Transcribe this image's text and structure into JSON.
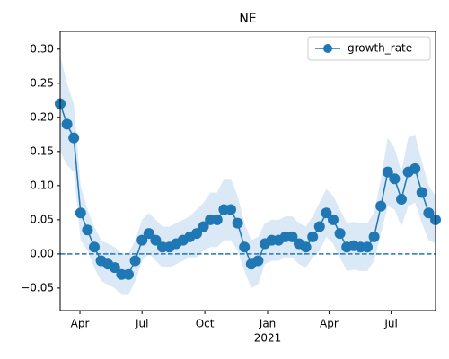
{
  "chart_data": {
    "type": "line",
    "title": "NE",
    "x": [
      0,
      10,
      20,
      30,
      40,
      50,
      60,
      70,
      80,
      90,
      100,
      110,
      120,
      130,
      140,
      150,
      160,
      170,
      180,
      190,
      200,
      210,
      220,
      230,
      240,
      250,
      260,
      270,
      280,
      290,
      300,
      310,
      320,
      330,
      340,
      350,
      360,
      370,
      380,
      390,
      400,
      410,
      420,
      430,
      440,
      450,
      460,
      470,
      480,
      490,
      500,
      510,
      520,
      530,
      540,
      550
    ],
    "series": [
      {
        "name": "growth_rate",
        "color": "#1f77b4",
        "band_color": "#dbe8f5",
        "values": [
          0.22,
          0.19,
          0.17,
          0.06,
          0.035,
          0.01,
          -0.01,
          -0.015,
          -0.02,
          -0.03,
          -0.03,
          -0.01,
          0.02,
          0.03,
          0.02,
          0.01,
          0.01,
          0.015,
          0.02,
          0.025,
          0.03,
          0.04,
          0.05,
          0.05,
          0.065,
          0.065,
          0.045,
          0.01,
          -0.015,
          -0.01,
          0.015,
          0.02,
          0.02,
          0.025,
          0.025,
          0.015,
          0.01,
          0.025,
          0.04,
          0.06,
          0.05,
          0.03,
          0.01,
          0.012,
          0.01,
          0.01,
          0.025,
          0.07,
          0.12,
          0.11,
          0.08,
          0.12,
          0.125,
          0.09,
          0.06,
          0.05
        ],
        "upper": [
          0.29,
          0.25,
          0.22,
          0.1,
          0.065,
          0.04,
          0.02,
          0.015,
          0.01,
          0.0,
          0.0,
          0.02,
          0.05,
          0.06,
          0.05,
          0.04,
          0.04,
          0.045,
          0.05,
          0.055,
          0.065,
          0.075,
          0.09,
          0.09,
          0.11,
          0.11,
          0.085,
          0.045,
          0.02,
          0.025,
          0.045,
          0.05,
          0.05,
          0.055,
          0.055,
          0.045,
          0.04,
          0.055,
          0.075,
          0.095,
          0.085,
          0.065,
          0.045,
          0.047,
          0.045,
          0.045,
          0.06,
          0.11,
          0.17,
          0.155,
          0.12,
          0.17,
          0.175,
          0.135,
          0.1,
          0.085
        ],
        "lower": [
          0.15,
          0.13,
          0.12,
          0.02,
          0.005,
          -0.02,
          -0.04,
          -0.045,
          -0.05,
          -0.06,
          -0.06,
          -0.04,
          -0.01,
          0.0,
          -0.01,
          -0.02,
          -0.02,
          -0.015,
          -0.01,
          -0.005,
          -0.005,
          0.005,
          0.01,
          0.01,
          0.02,
          0.02,
          0.005,
          -0.025,
          -0.05,
          -0.045,
          -0.015,
          -0.01,
          -0.01,
          -0.005,
          -0.005,
          -0.015,
          -0.02,
          -0.005,
          0.005,
          0.025,
          0.015,
          -0.005,
          -0.025,
          -0.023,
          -0.025,
          -0.025,
          -0.01,
          0.03,
          0.07,
          0.065,
          0.04,
          0.07,
          0.075,
          0.045,
          0.02,
          0.015
        ]
      }
    ],
    "xlim": [
      0,
      550
    ],
    "xticks": [
      {
        "value": 29,
        "label": "Apr"
      },
      {
        "value": 120,
        "label": "Jul"
      },
      {
        "value": 212,
        "label": "Oct"
      },
      {
        "value": 304,
        "label": "Jan",
        "sublabel": "2021"
      },
      {
        "value": 394,
        "label": "Apr"
      },
      {
        "value": 485,
        "label": "Jul"
      }
    ],
    "ylim": [
      -0.083,
      0.326
    ],
    "yticks": [
      {
        "value": -0.05,
        "label": "−0.05"
      },
      {
        "value": 0,
        "label": "0.00"
      },
      0.05,
      {
        "value": 0.1,
        "label": "0.10"
      },
      0.15,
      {
        "value": 0.2,
        "label": "0.20"
      },
      0.25,
      {
        "value": 0.3,
        "label": "0.30"
      }
    ],
    "hline": 0,
    "legend": "upper right",
    "grid": false
  }
}
